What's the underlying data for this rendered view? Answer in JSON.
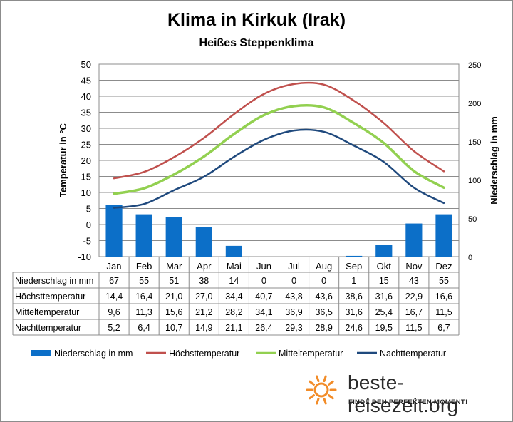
{
  "title": "Klima in Kirkuk (Irak)",
  "subtitle": "Heißes Steppenklima",
  "brand": {
    "name": "beste-reisezeit.org",
    "tagline": "FINDE DEN PERFEKTEN MOMENT!"
  },
  "colors": {
    "precip": "#0c6fc8",
    "max": "#c0504d",
    "mean": "#92d050",
    "min": "#1f497d",
    "logo": "#f28c28"
  },
  "chart_data": {
    "type": "bar",
    "categories": [
      "Jan",
      "Feb",
      "Mar",
      "Apr",
      "Mai",
      "Jun",
      "Jul",
      "Aug",
      "Sep",
      "Okt",
      "Nov",
      "Dez"
    ],
    "y_left": {
      "label": "Temperatur in °C",
      "ticks": [
        "50",
        "45",
        "40",
        "35",
        "30",
        "25",
        "20",
        "15",
        "10",
        "5",
        "0",
        "-5",
        "-10"
      ],
      "range": [
        -10,
        50
      ]
    },
    "y_right": {
      "label": "Niederschlag in mm",
      "ticks": [
        "250",
        "200",
        "150",
        "100",
        "50",
        "0"
      ],
      "range": [
        0,
        250
      ]
    },
    "grid": true,
    "legend_position": "bottom",
    "series": [
      {
        "key": "precip",
        "name": "Niederschlag in mm",
        "type": "bar",
        "axis": "right",
        "values": [
          67,
          55,
          51,
          38,
          14,
          0,
          0,
          0,
          1,
          15,
          43,
          55
        ],
        "labels": [
          "67",
          "55",
          "51",
          "38",
          "14",
          "0",
          "0",
          "0",
          "1",
          "15",
          "43",
          "55"
        ]
      },
      {
        "key": "max",
        "name": "Höchsttemperatur",
        "type": "line",
        "axis": "left",
        "values": [
          14.4,
          16.4,
          21.0,
          27.0,
          34.4,
          40.7,
          43.8,
          43.6,
          38.6,
          31.6,
          22.9,
          16.6
        ],
        "labels": [
          "14,4",
          "16,4",
          "21,0",
          "27,0",
          "34,4",
          "40,7",
          "43,8",
          "43,6",
          "38,6",
          "31,6",
          "22,9",
          "16,6"
        ]
      },
      {
        "key": "mean",
        "name": "Mitteltemperatur",
        "type": "line",
        "axis": "left",
        "values": [
          9.6,
          11.3,
          15.6,
          21.2,
          28.2,
          34.1,
          36.9,
          36.5,
          31.6,
          25.4,
          16.7,
          11.5
        ],
        "labels": [
          "9,6",
          "11,3",
          "15,6",
          "21,2",
          "28,2",
          "34,1",
          "36,9",
          "36,5",
          "31,6",
          "25,4",
          "16,7",
          "11,5"
        ]
      },
      {
        "key": "min",
        "name": "Nachttemperatur",
        "type": "line",
        "axis": "left",
        "values": [
          5.2,
          6.4,
          10.7,
          14.9,
          21.1,
          26.4,
          29.3,
          28.9,
          24.6,
          19.5,
          11.5,
          6.7
        ],
        "labels": [
          "5,2",
          "6,4",
          "10,7",
          "14,9",
          "21,1",
          "26,4",
          "29,3",
          "28,9",
          "24,6",
          "19,5",
          "11,5",
          "6,7"
        ]
      }
    ]
  }
}
